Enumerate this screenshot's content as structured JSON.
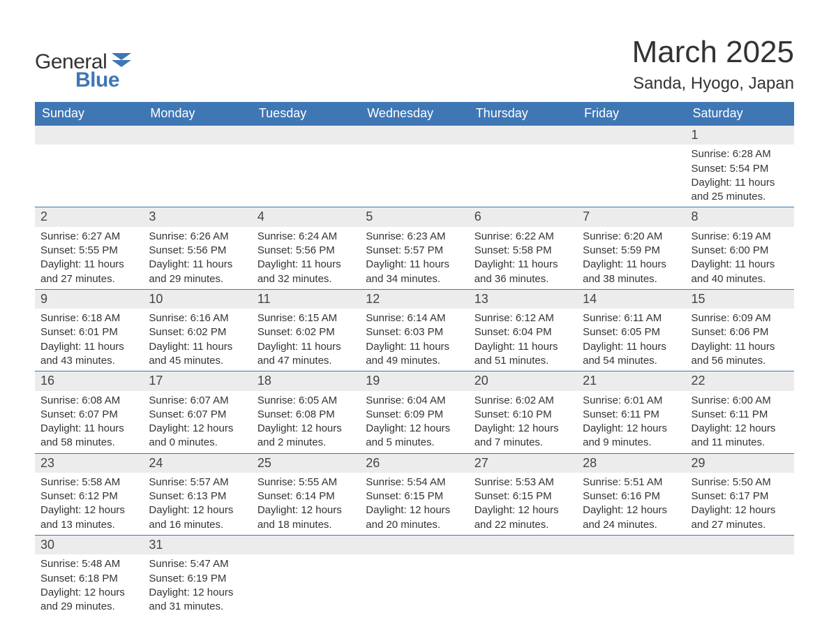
{
  "brand": {
    "word1": "General",
    "word2": "Blue"
  },
  "title": "March 2025",
  "location": "Sanda, Hyogo, Japan",
  "colors": {
    "header_bg": "#3f77b5",
    "header_text": "#ffffff",
    "daynum_bg": "#ececec",
    "row_border": "#3f77b5",
    "text": "#333333",
    "page_bg": "#ffffff"
  },
  "typography": {
    "title_fontsize": 44,
    "location_fontsize": 24,
    "weekday_fontsize": 18,
    "daynum_fontsize": 18,
    "body_fontsize": 15
  },
  "calendar": {
    "type": "table",
    "columns": [
      "Sunday",
      "Monday",
      "Tuesday",
      "Wednesday",
      "Thursday",
      "Friday",
      "Saturday"
    ],
    "weeks": [
      [
        null,
        null,
        null,
        null,
        null,
        null,
        {
          "n": "1",
          "sunrise": "Sunrise: 6:28 AM",
          "sunset": "Sunset: 5:54 PM",
          "daylight": "Daylight: 11 hours and 25 minutes."
        }
      ],
      [
        {
          "n": "2",
          "sunrise": "Sunrise: 6:27 AM",
          "sunset": "Sunset: 5:55 PM",
          "daylight": "Daylight: 11 hours and 27 minutes."
        },
        {
          "n": "3",
          "sunrise": "Sunrise: 6:26 AM",
          "sunset": "Sunset: 5:56 PM",
          "daylight": "Daylight: 11 hours and 29 minutes."
        },
        {
          "n": "4",
          "sunrise": "Sunrise: 6:24 AM",
          "sunset": "Sunset: 5:56 PM",
          "daylight": "Daylight: 11 hours and 32 minutes."
        },
        {
          "n": "5",
          "sunrise": "Sunrise: 6:23 AM",
          "sunset": "Sunset: 5:57 PM",
          "daylight": "Daylight: 11 hours and 34 minutes."
        },
        {
          "n": "6",
          "sunrise": "Sunrise: 6:22 AM",
          "sunset": "Sunset: 5:58 PM",
          "daylight": "Daylight: 11 hours and 36 minutes."
        },
        {
          "n": "7",
          "sunrise": "Sunrise: 6:20 AM",
          "sunset": "Sunset: 5:59 PM",
          "daylight": "Daylight: 11 hours and 38 minutes."
        },
        {
          "n": "8",
          "sunrise": "Sunrise: 6:19 AM",
          "sunset": "Sunset: 6:00 PM",
          "daylight": "Daylight: 11 hours and 40 minutes."
        }
      ],
      [
        {
          "n": "9",
          "sunrise": "Sunrise: 6:18 AM",
          "sunset": "Sunset: 6:01 PM",
          "daylight": "Daylight: 11 hours and 43 minutes."
        },
        {
          "n": "10",
          "sunrise": "Sunrise: 6:16 AM",
          "sunset": "Sunset: 6:02 PM",
          "daylight": "Daylight: 11 hours and 45 minutes."
        },
        {
          "n": "11",
          "sunrise": "Sunrise: 6:15 AM",
          "sunset": "Sunset: 6:02 PM",
          "daylight": "Daylight: 11 hours and 47 minutes."
        },
        {
          "n": "12",
          "sunrise": "Sunrise: 6:14 AM",
          "sunset": "Sunset: 6:03 PM",
          "daylight": "Daylight: 11 hours and 49 minutes."
        },
        {
          "n": "13",
          "sunrise": "Sunrise: 6:12 AM",
          "sunset": "Sunset: 6:04 PM",
          "daylight": "Daylight: 11 hours and 51 minutes."
        },
        {
          "n": "14",
          "sunrise": "Sunrise: 6:11 AM",
          "sunset": "Sunset: 6:05 PM",
          "daylight": "Daylight: 11 hours and 54 minutes."
        },
        {
          "n": "15",
          "sunrise": "Sunrise: 6:09 AM",
          "sunset": "Sunset: 6:06 PM",
          "daylight": "Daylight: 11 hours and 56 minutes."
        }
      ],
      [
        {
          "n": "16",
          "sunrise": "Sunrise: 6:08 AM",
          "sunset": "Sunset: 6:07 PM",
          "daylight": "Daylight: 11 hours and 58 minutes."
        },
        {
          "n": "17",
          "sunrise": "Sunrise: 6:07 AM",
          "sunset": "Sunset: 6:07 PM",
          "daylight": "Daylight: 12 hours and 0 minutes."
        },
        {
          "n": "18",
          "sunrise": "Sunrise: 6:05 AM",
          "sunset": "Sunset: 6:08 PM",
          "daylight": "Daylight: 12 hours and 2 minutes."
        },
        {
          "n": "19",
          "sunrise": "Sunrise: 6:04 AM",
          "sunset": "Sunset: 6:09 PM",
          "daylight": "Daylight: 12 hours and 5 minutes."
        },
        {
          "n": "20",
          "sunrise": "Sunrise: 6:02 AM",
          "sunset": "Sunset: 6:10 PM",
          "daylight": "Daylight: 12 hours and 7 minutes."
        },
        {
          "n": "21",
          "sunrise": "Sunrise: 6:01 AM",
          "sunset": "Sunset: 6:11 PM",
          "daylight": "Daylight: 12 hours and 9 minutes."
        },
        {
          "n": "22",
          "sunrise": "Sunrise: 6:00 AM",
          "sunset": "Sunset: 6:11 PM",
          "daylight": "Daylight: 12 hours and 11 minutes."
        }
      ],
      [
        {
          "n": "23",
          "sunrise": "Sunrise: 5:58 AM",
          "sunset": "Sunset: 6:12 PM",
          "daylight": "Daylight: 12 hours and 13 minutes."
        },
        {
          "n": "24",
          "sunrise": "Sunrise: 5:57 AM",
          "sunset": "Sunset: 6:13 PM",
          "daylight": "Daylight: 12 hours and 16 minutes."
        },
        {
          "n": "25",
          "sunrise": "Sunrise: 5:55 AM",
          "sunset": "Sunset: 6:14 PM",
          "daylight": "Daylight: 12 hours and 18 minutes."
        },
        {
          "n": "26",
          "sunrise": "Sunrise: 5:54 AM",
          "sunset": "Sunset: 6:15 PM",
          "daylight": "Daylight: 12 hours and 20 minutes."
        },
        {
          "n": "27",
          "sunrise": "Sunrise: 5:53 AM",
          "sunset": "Sunset: 6:15 PM",
          "daylight": "Daylight: 12 hours and 22 minutes."
        },
        {
          "n": "28",
          "sunrise": "Sunrise: 5:51 AM",
          "sunset": "Sunset: 6:16 PM",
          "daylight": "Daylight: 12 hours and 24 minutes."
        },
        {
          "n": "29",
          "sunrise": "Sunrise: 5:50 AM",
          "sunset": "Sunset: 6:17 PM",
          "daylight": "Daylight: 12 hours and 27 minutes."
        }
      ],
      [
        {
          "n": "30",
          "sunrise": "Sunrise: 5:48 AM",
          "sunset": "Sunset: 6:18 PM",
          "daylight": "Daylight: 12 hours and 29 minutes."
        },
        {
          "n": "31",
          "sunrise": "Sunrise: 5:47 AM",
          "sunset": "Sunset: 6:19 PM",
          "daylight": "Daylight: 12 hours and 31 minutes."
        },
        null,
        null,
        null,
        null,
        null
      ]
    ]
  }
}
